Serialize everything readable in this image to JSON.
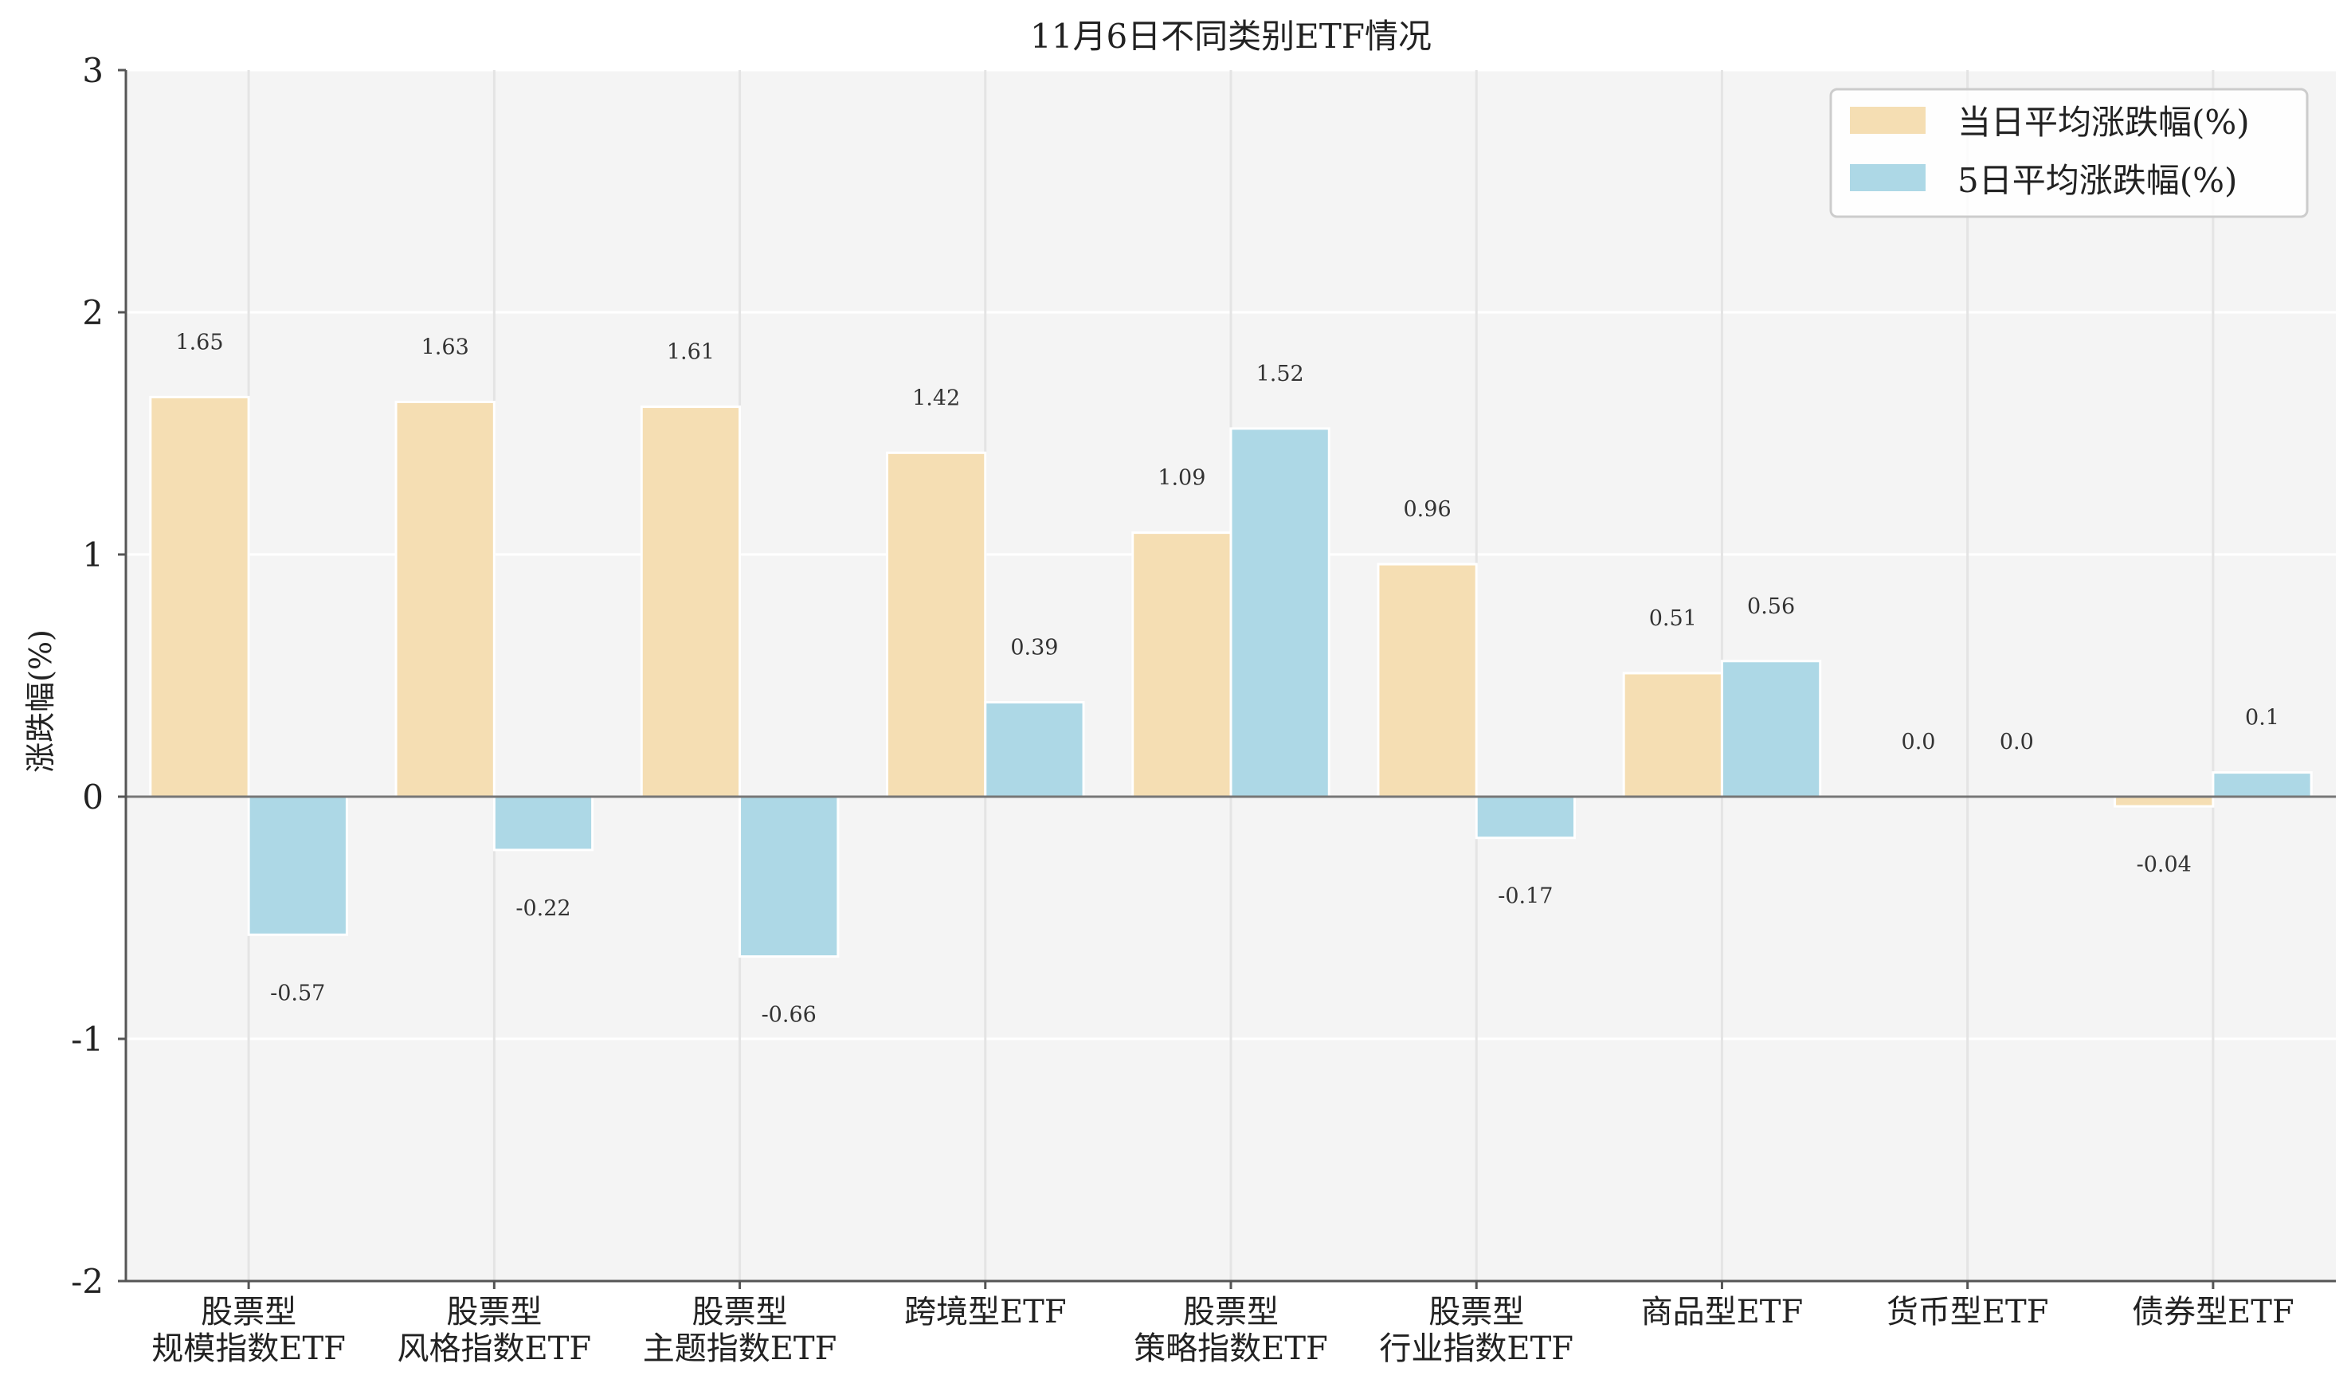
{
  "chart_data": {
    "type": "bar",
    "title": "11月6日不同类别ETF情况",
    "xlabel": "",
    "ylabel": "涨跌幅(%)",
    "ylim": [
      -2,
      3
    ],
    "yticks": [
      3,
      2,
      1,
      0,
      -1,
      -2
    ],
    "ytick_labels": [
      "3",
      "2",
      "1",
      "0",
      "-1",
      "-2"
    ],
    "grid": true,
    "legend_position": "top-right",
    "categories": [
      [
        "股票型",
        "规模指数ETF"
      ],
      [
        "股票型",
        "风格指数ETF"
      ],
      [
        "股票型",
        "主题指数ETF"
      ],
      [
        "跨境型ETF"
      ],
      [
        "股票型",
        "策略指数ETF"
      ],
      [
        "股票型",
        "行业指数ETF"
      ],
      [
        "商品型ETF"
      ],
      [
        "货币型ETF"
      ],
      [
        "债券型ETF"
      ]
    ],
    "series": [
      {
        "name": "当日平均涨跌幅(%)",
        "color": "#f5deb3",
        "values": [
          1.65,
          1.63,
          1.61,
          1.42,
          1.09,
          0.96,
          0.51,
          0.0,
          -0.04
        ],
        "labels": [
          "1.65",
          "1.63",
          "1.61",
          "1.42",
          "1.09",
          "0.96",
          "0.51",
          "0.0",
          "-0.04"
        ]
      },
      {
        "name": "5日平均涨跌幅(%)",
        "color": "#add8e6",
        "values": [
          -0.57,
          -0.22,
          -0.66,
          0.39,
          1.52,
          -0.17,
          0.56,
          0.0,
          0.1
        ],
        "labels": [
          "-0.57",
          "-0.22",
          "-0.66",
          "0.39",
          "1.52",
          "-0.17",
          "0.56",
          "0.0",
          "0.1"
        ]
      }
    ],
    "colors": {
      "plot_background": "#f4f4f4",
      "grid": "#ffffff",
      "axis": "#555555",
      "zero_line": "#777777",
      "bar_edge": "#ffffff"
    }
  }
}
